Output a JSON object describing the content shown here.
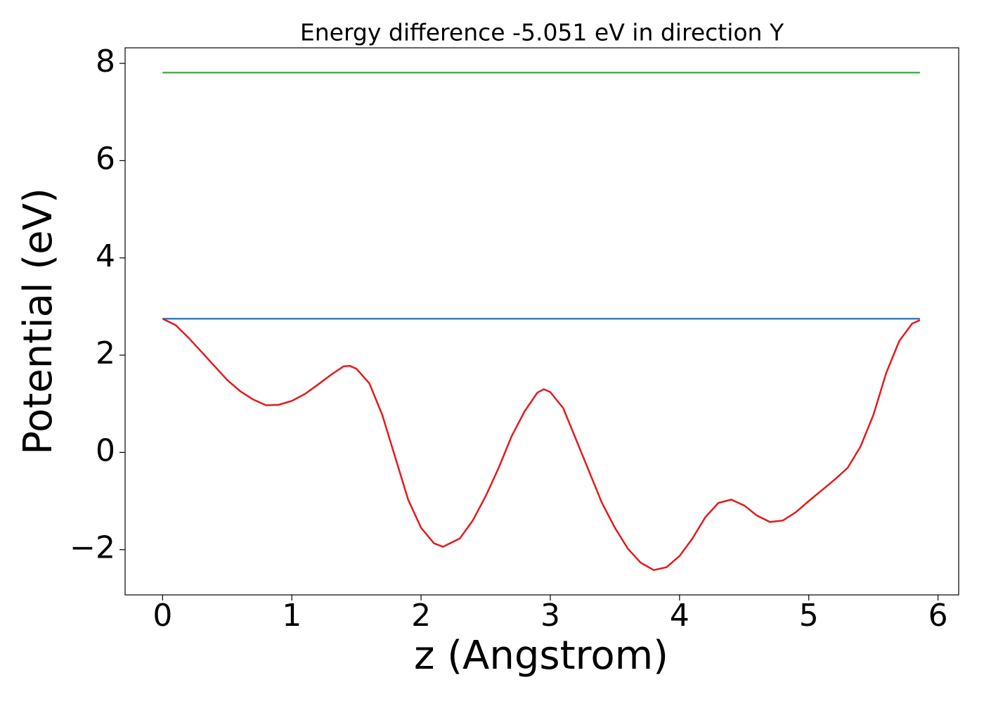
{
  "chart_data": {
    "type": "line",
    "title": "Energy difference -5.051 eV in direction Y",
    "xlabel": "z (Angstrom)",
    "ylabel": "Potential (eV)",
    "xlim": [
      -0.29,
      6.16
    ],
    "ylim": [
      -2.93,
      8.32
    ],
    "xticks": [
      0,
      1,
      2,
      3,
      4,
      5,
      6
    ],
    "yticks": [
      {
        "value": -2,
        "label": "−2"
      },
      0,
      2,
      4,
      6,
      8
    ],
    "series": [
      {
        "color": "#4daf4a",
        "x": [
          0,
          5.86
        ],
        "values": [
          7.81,
          7.81
        ]
      },
      {
        "color": "#377eb8",
        "x": [
          0,
          5.86
        ],
        "values": [
          2.75,
          2.75
        ]
      },
      {
        "color": "#e41a1c",
        "x": [
          0,
          0.1,
          0.2,
          0.3,
          0.4,
          0.5,
          0.6,
          0.7,
          0.8,
          0.9,
          1.0,
          1.1,
          1.2,
          1.3,
          1.4,
          1.45,
          1.5,
          1.6,
          1.7,
          1.8,
          1.9,
          2.0,
          2.1,
          2.17,
          2.3,
          2.4,
          2.5,
          2.6,
          2.7,
          2.8,
          2.9,
          2.95,
          3.0,
          3.1,
          3.2,
          3.3,
          3.4,
          3.5,
          3.6,
          3.7,
          3.8,
          3.9,
          4.0,
          4.1,
          4.2,
          4.3,
          4.4,
          4.5,
          4.6,
          4.7,
          4.8,
          4.9,
          5.0,
          5.1,
          5.2,
          5.3,
          5.4,
          5.5,
          5.6,
          5.7,
          5.8,
          5.86
        ],
        "values": [
          2.75,
          2.62,
          2.36,
          2.07,
          1.78,
          1.49,
          1.26,
          1.09,
          0.97,
          0.98,
          1.06,
          1.2,
          1.39,
          1.59,
          1.77,
          1.78,
          1.72,
          1.42,
          0.77,
          -0.1,
          -0.97,
          -1.55,
          -1.87,
          -1.94,
          -1.77,
          -1.4,
          -0.9,
          -0.32,
          0.33,
          0.84,
          1.23,
          1.3,
          1.24,
          0.91,
          0.26,
          -0.39,
          -1.04,
          -1.55,
          -1.98,
          -2.27,
          -2.42,
          -2.36,
          -2.13,
          -1.77,
          -1.33,
          -1.04,
          -0.97,
          -1.09,
          -1.3,
          -1.43,
          -1.4,
          -1.23,
          -1.0,
          -0.78,
          -0.56,
          -0.32,
          0.12,
          0.77,
          1.64,
          2.29,
          2.65,
          2.72
        ]
      }
    ]
  }
}
